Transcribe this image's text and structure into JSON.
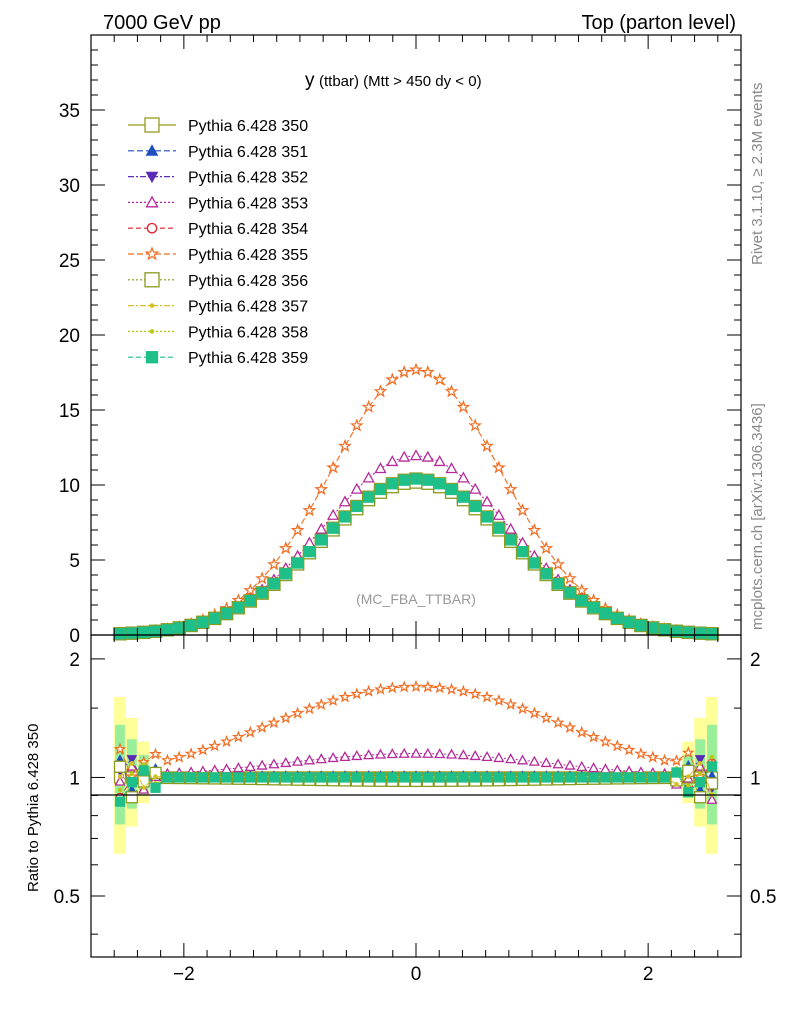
{
  "header": {
    "left": "7000 GeV pp",
    "right": "Top (parton level)"
  },
  "side_notes": {
    "rivet": "Rivet 3.1.10, ≥ 2.3M events",
    "mcplots": "mcplots.cern.ch [arXiv:1306.3436]"
  },
  "chart_data": {
    "type": "line",
    "title": "y",
    "title_suffix": "(ttbar) (Mtt > 450 dy < 0)",
    "watermark": "(MC_FBA_TTBAR)",
    "xlim": [
      -2.8,
      2.8
    ],
    "main_ylim": [
      0,
      40
    ],
    "main_yticks": [
      "0",
      "5",
      "10",
      "15",
      "20",
      "25",
      "30",
      "35"
    ],
    "ratio_ylabel": "Ratio to Pythia 6.428 350",
    "ratio_ylim": [
      0.35,
      2.3
    ],
    "ratio_yticks": [
      "0.5",
      "1",
      "2"
    ],
    "xticks": [
      "−2",
      "0",
      "2"
    ],
    "series": [
      {
        "name": "Pythia 6.428 350",
        "color": "#9a9a1e",
        "marker": "square-open",
        "dash": "solid",
        "scale": 1.0,
        "ratio_offset": 0.0
      },
      {
        "name": "Pythia 6.428 351",
        "color": "#1f4fbf",
        "marker": "triangle-up",
        "dash": "6,3",
        "scale": 1.0,
        "ratio_offset": 0.01
      },
      {
        "name": "Pythia 6.428 352",
        "color": "#5b2bb5",
        "marker": "triangle-down",
        "dash": "6,2,2,2",
        "scale": 1.0,
        "ratio_offset": 0.005
      },
      {
        "name": "Pythia 6.428 353",
        "color": "#b52a9a",
        "marker": "triangle-open",
        "dash": "2,2",
        "scale": 1.15,
        "ratio_offset": 0.0
      },
      {
        "name": "Pythia 6.428 354",
        "color": "#e0222a",
        "marker": "circle-open",
        "dash": "5,3",
        "scale": 1.0,
        "ratio_offset": -0.01
      },
      {
        "name": "Pythia 6.428 355",
        "color": "#f26a1e",
        "marker": "star",
        "dash": "6,3",
        "scale": 1.7,
        "ratio_offset": 0.0
      },
      {
        "name": "Pythia 6.428 356",
        "color": "#8a9a1e",
        "marker": "square-open",
        "dash": "2,2",
        "scale": 0.98,
        "ratio_offset": 0.0
      },
      {
        "name": "Pythia 6.428 357",
        "color": "#d4c020",
        "marker": "dot",
        "dash": "6,2,2,2",
        "scale": 1.0,
        "ratio_offset": 0.005
      },
      {
        "name": "Pythia 6.428 358",
        "color": "#b8c814",
        "marker": "dot",
        "dash": "2,2",
        "scale": 1.0,
        "ratio_offset": -0.005
      },
      {
        "name": "Pythia 6.428 359",
        "color": "#1fbf8a",
        "marker": "square-filled",
        "dash": "5,3",
        "scale": 1.0,
        "ratio_offset": 0.0
      }
    ],
    "reference_shape": {
      "peak": 10.4,
      "sigma": 0.82,
      "x_from": -2.55,
      "x_to": 2.55,
      "bins": 51
    }
  }
}
